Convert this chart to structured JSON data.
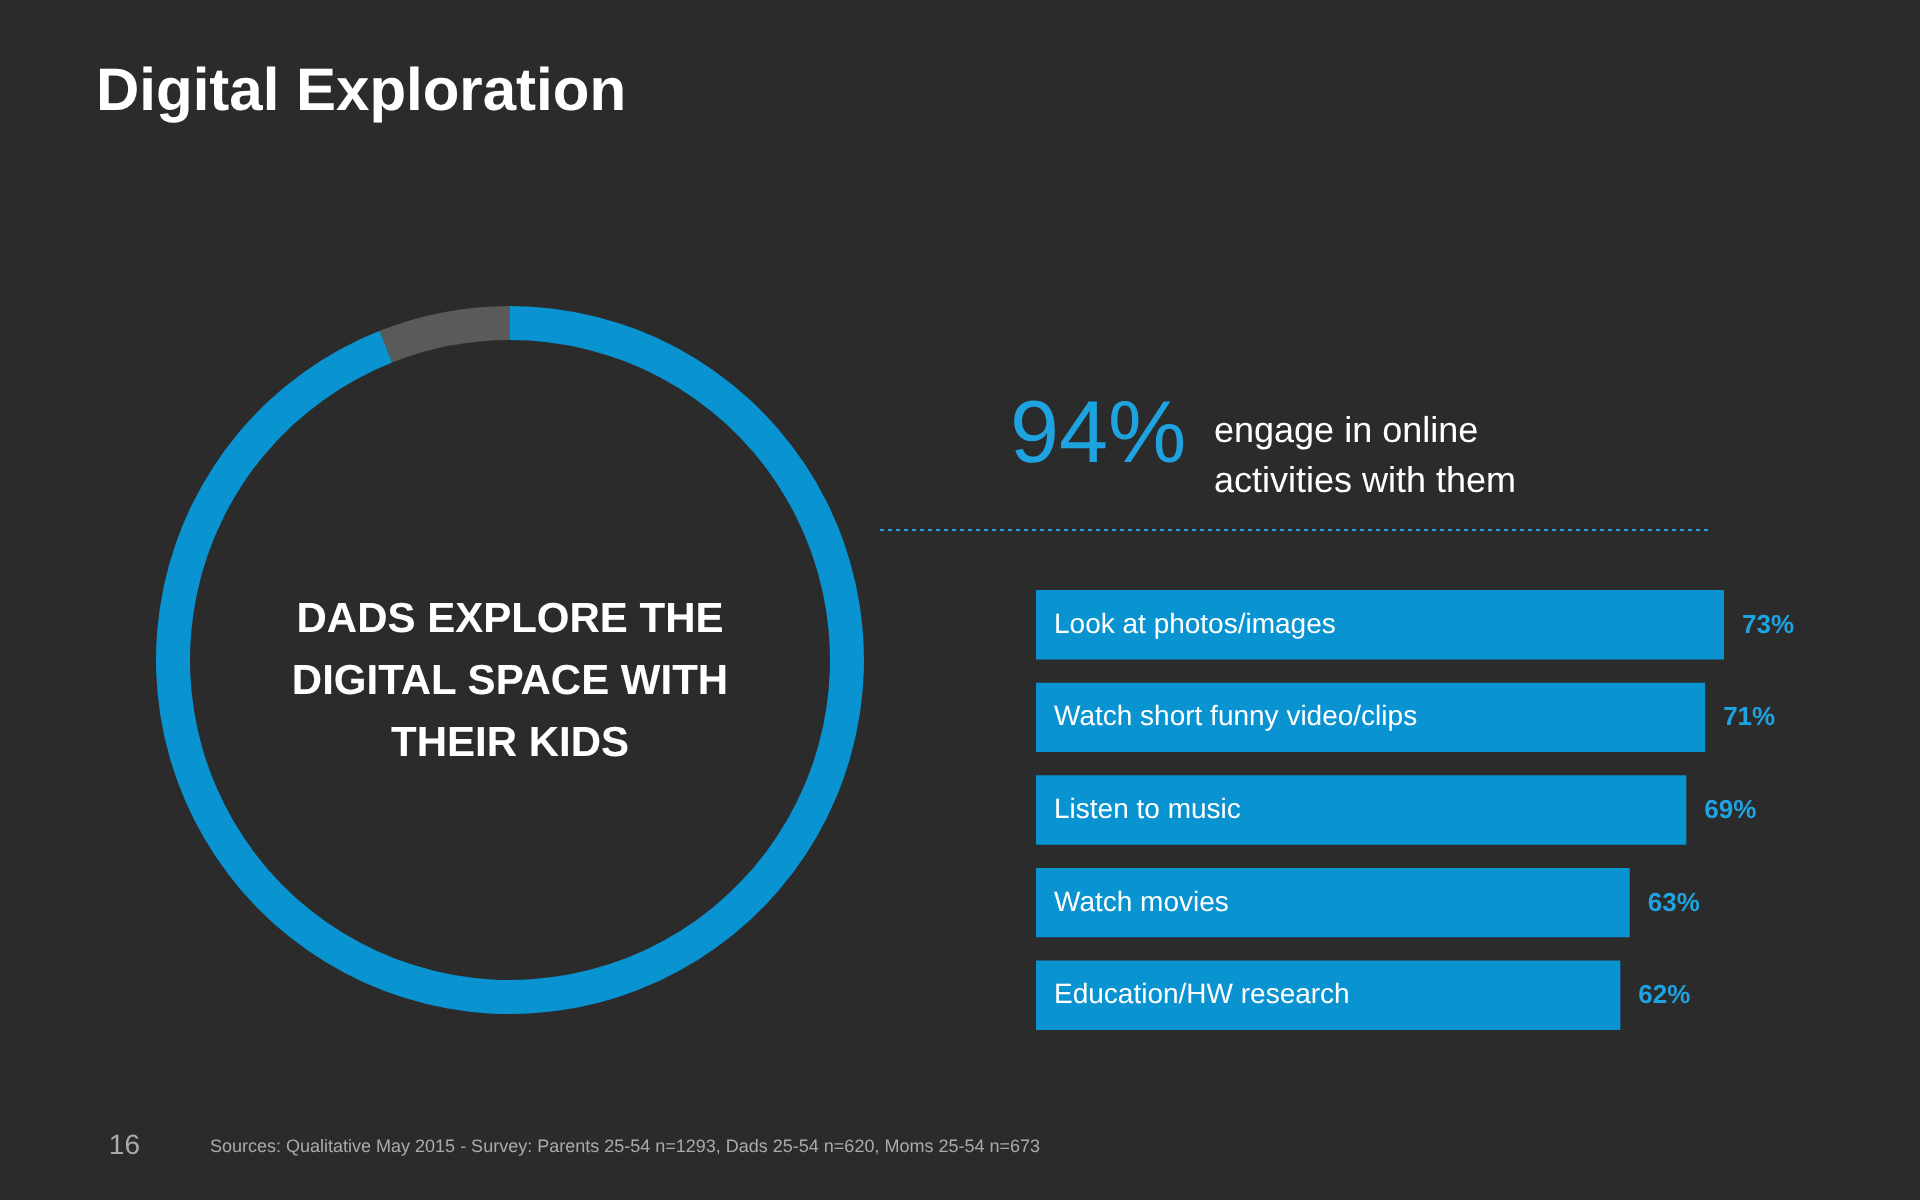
{
  "chart_data": [
    {
      "type": "donut",
      "title": "Digital Exploration",
      "categories": [
        null,
        null
      ],
      "values": [
        94,
        6
      ],
      "colors": [
        "#0a93d1",
        "#5a5a5a"
      ],
      "value_labels": [
        "94%",
        null
      ],
      "annotations": [
        "DADS EXPLORE THE DIGITAL SPACE WITH THEIR KIDS",
        "engage in online activities with them"
      ]
    },
    {
      "type": "bar",
      "orientation": "horizontal",
      "tick_labels": false,
      "categories": [
        "Look at photos/images",
        "Watch short funny video/clips",
        "Listen to music",
        "Watch movies",
        "Education/HW research"
      ],
      "values": [
        73,
        71,
        69,
        63,
        62
      ],
      "color": "#0a93d1",
      "value_labels": [
        "73%",
        "71%",
        "69%",
        "63%",
        "62%"
      ],
      "annotations": [
        "16",
        "Sources: Qualitative May 2015 - Survey: Parents 25-54 n=1293, Dads 25-54 n=620, Moms 25-54 n=673"
      ]
    }
  ]
}
